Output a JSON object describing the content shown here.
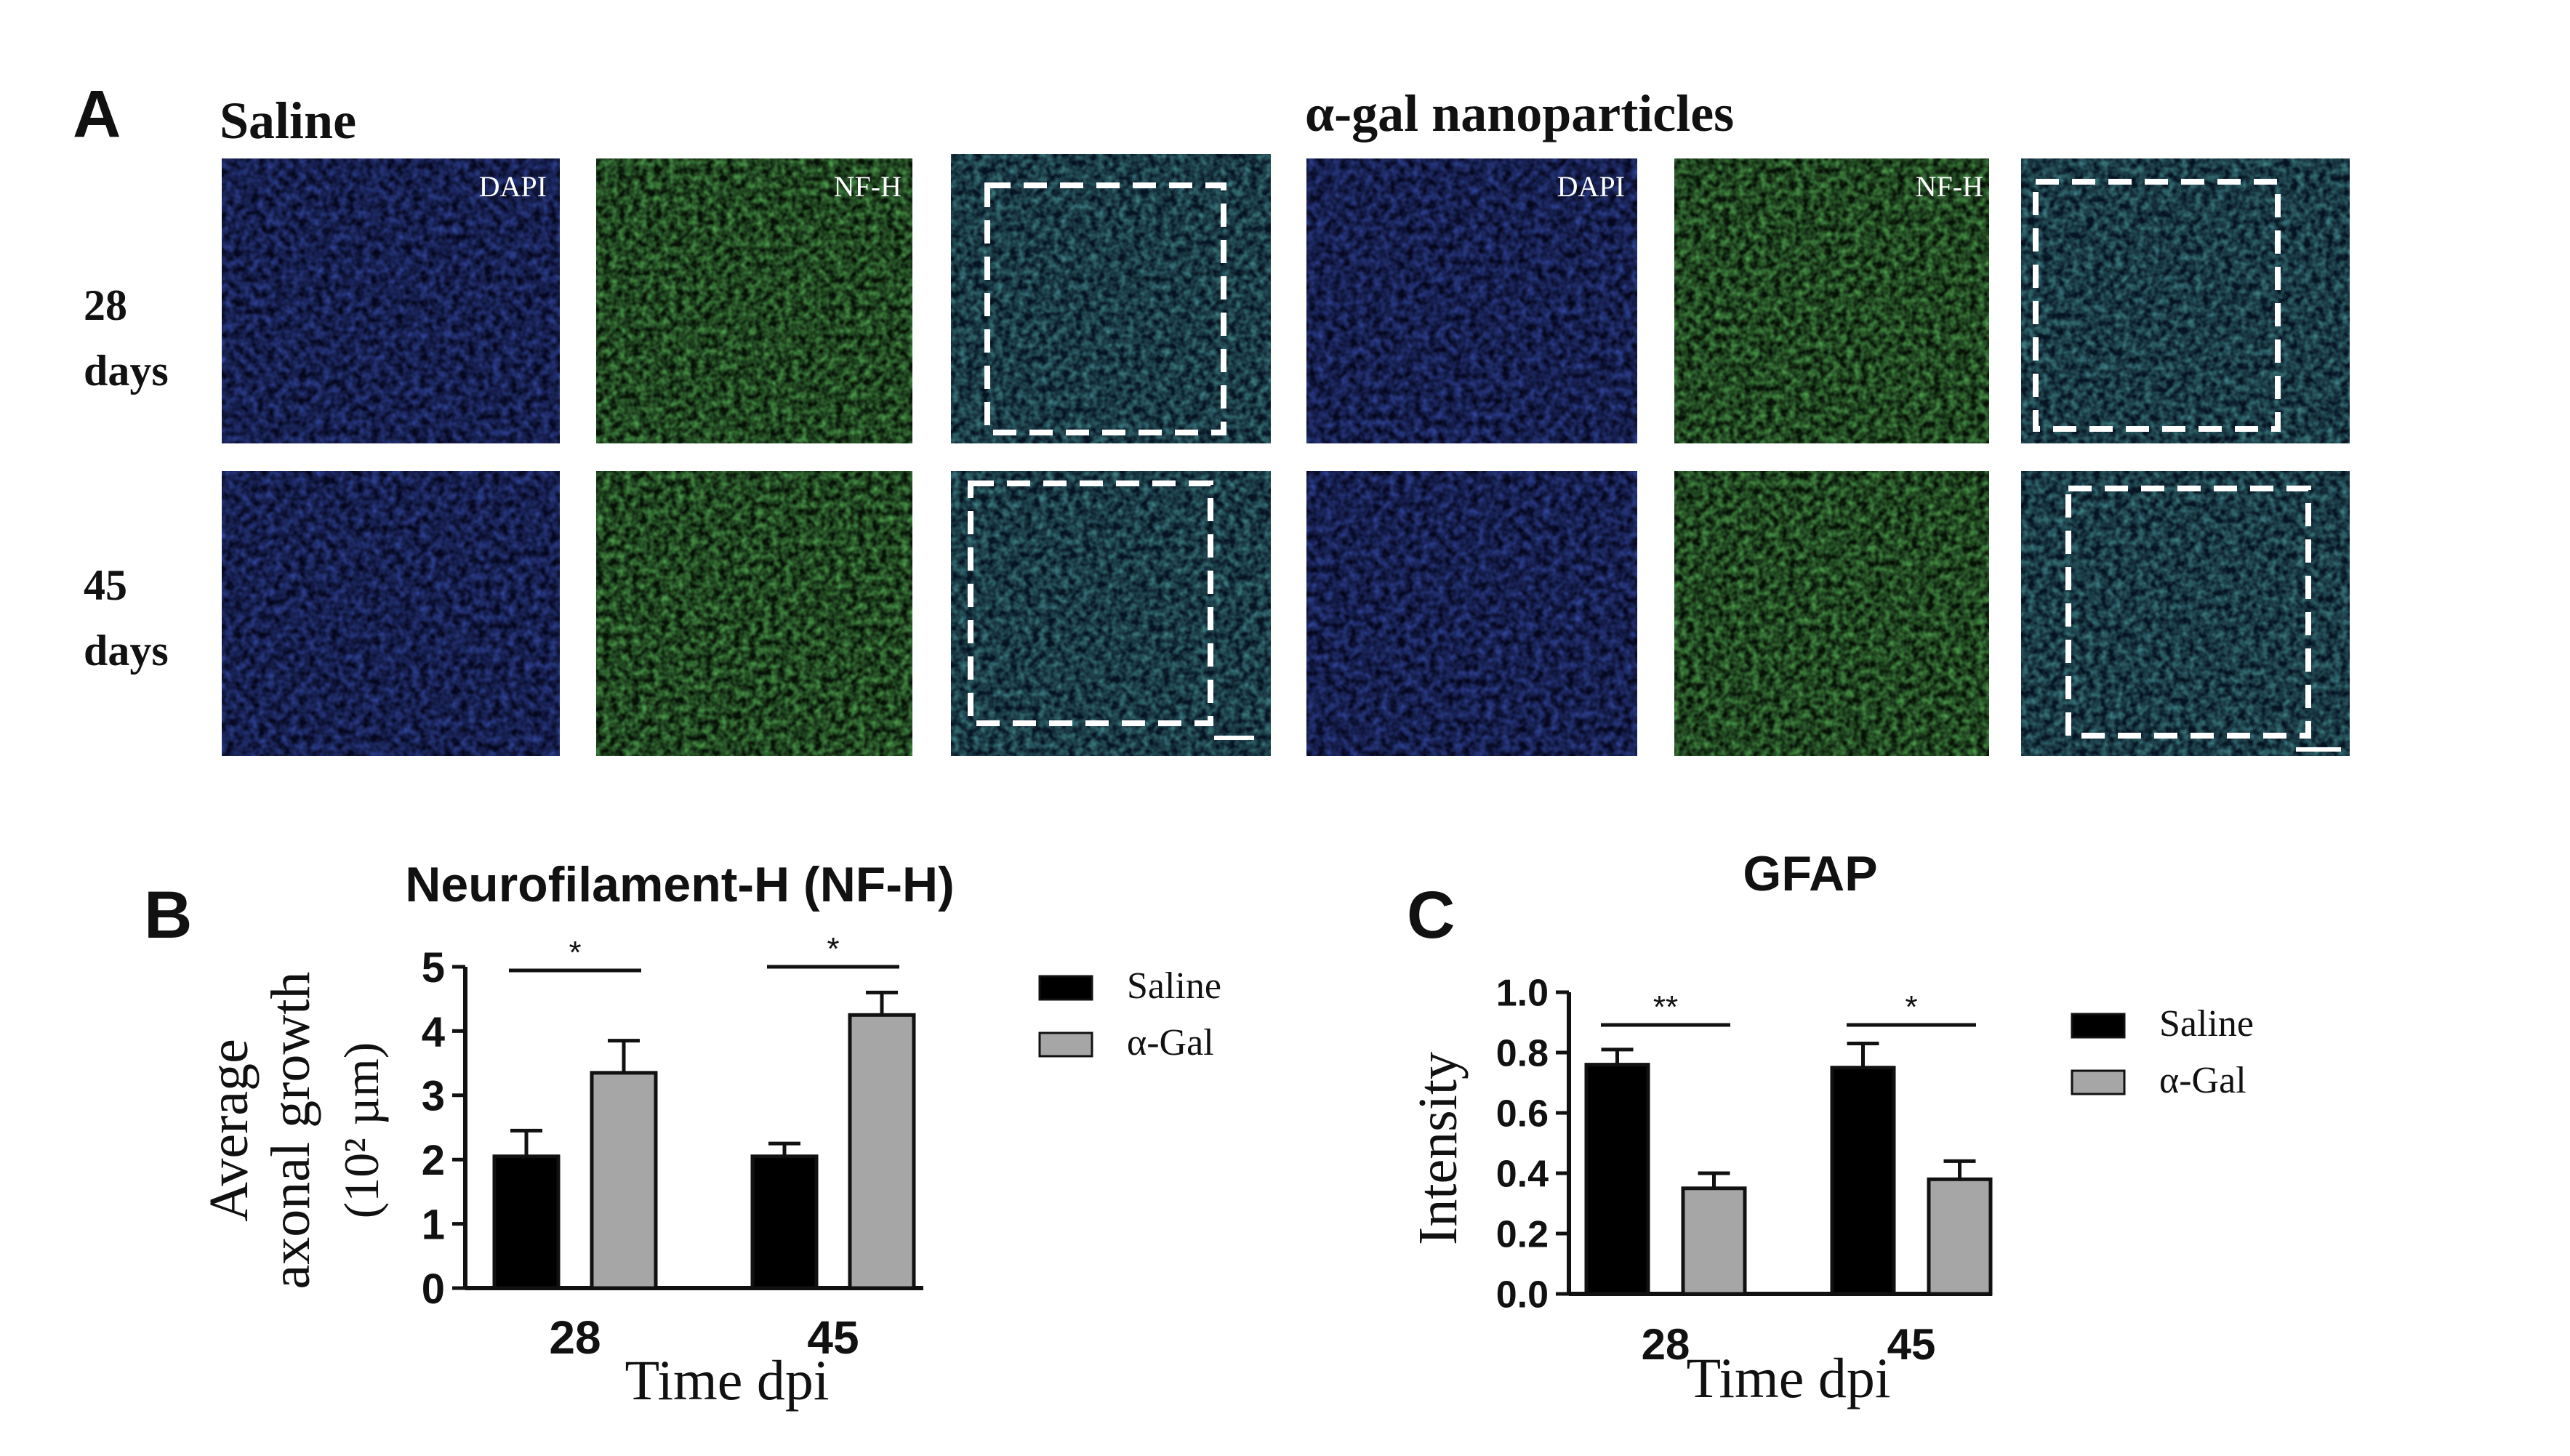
{
  "panel_a": {
    "letter": "A",
    "group_saline": "Saline",
    "group_agal": "α-gal nanoparticles",
    "rows": [
      {
        "label_line1": "28",
        "label_line2": "days"
      },
      {
        "label_line1": "45",
        "label_line2": "days"
      }
    ],
    "channel_labels": {
      "dapi": "DAPI",
      "nfh": "NF-H"
    },
    "colors": {
      "dapi": "#1e2fa8",
      "nfh": "#2fa82f",
      "merge_box": "#ffffff"
    }
  },
  "chart_data": [
    {
      "panel": "B",
      "type": "bar",
      "title": "Neurofilament-H (NF-H)",
      "xlabel": "Time dpi",
      "ylabel_line1": "Average",
      "ylabel_line2": "axonal growth",
      "ylabel_line3": "(10² µm)",
      "categories": [
        "28",
        "45"
      ],
      "series": [
        {
          "name": "Saline",
          "values": [
            2.05,
            2.05
          ],
          "errors": [
            0.4,
            0.2
          ],
          "color": "#000000"
        },
        {
          "name": "α-Gal",
          "values": [
            3.35,
            4.25
          ],
          "errors": [
            0.5,
            0.35
          ],
          "color": "#a6a6a6"
        }
      ],
      "ylim": [
        0,
        5
      ],
      "yticks": [
        "0",
        "1",
        "2",
        "3",
        "4",
        "5"
      ],
      "significance": [
        "*",
        "*"
      ],
      "legend": "right"
    },
    {
      "panel": "C",
      "type": "bar",
      "title": "GFAP",
      "xlabel": "Time dpi",
      "ylabel": "Intensity",
      "categories": [
        "28",
        "45"
      ],
      "series": [
        {
          "name": "Saline",
          "values": [
            0.76,
            0.75
          ],
          "errors": [
            0.05,
            0.08
          ],
          "color": "#000000"
        },
        {
          "name": "α-Gal",
          "values": [
            0.35,
            0.38
          ],
          "errors": [
            0.05,
            0.06
          ],
          "color": "#a6a6a6"
        }
      ],
      "ylim": [
        0,
        1.0
      ],
      "yticks": [
        "0.0",
        "0.2",
        "0.4",
        "0.6",
        "0.8",
        "1.0"
      ],
      "significance": [
        "**",
        "*"
      ],
      "legend": "right"
    }
  ]
}
